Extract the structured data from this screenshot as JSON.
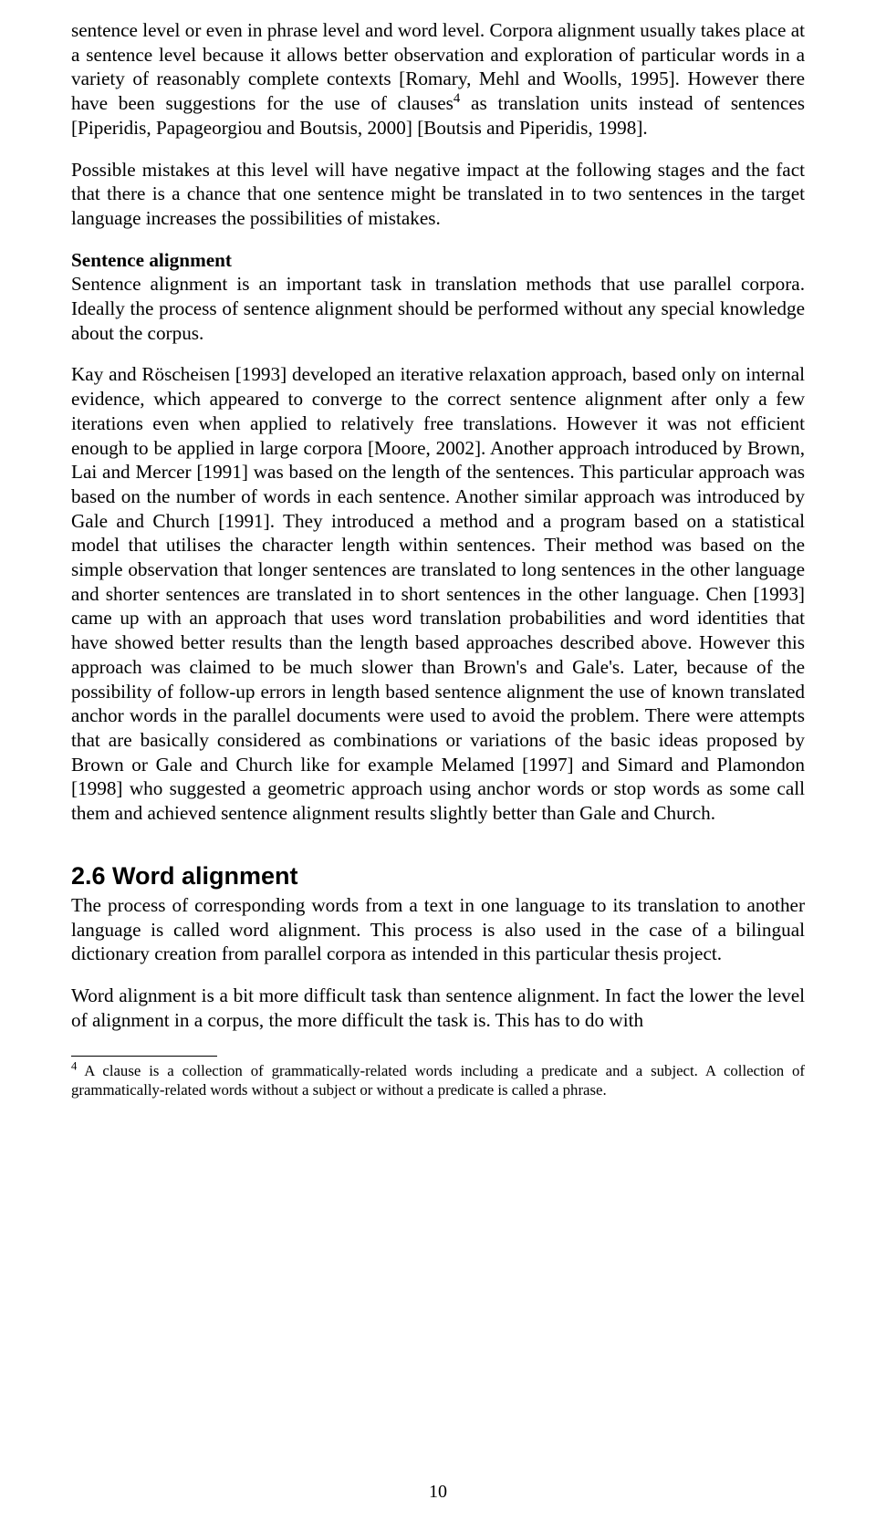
{
  "para1": "sentence level or even in phrase level and word level. Corpora alignment usually takes place at a sentence level because it allows better observation and exploration of particular words in a variety of reasonably complete contexts [Romary, Mehl and Woolls, 1995]. However there have been suggestions for the use of clauses",
  "para1_footref": "4",
  "para1b": " as translation units instead of sentences [Piperidis, Papageorgiou and Boutsis, 2000] [Boutsis and Piperidis, 1998].",
  "para2": "Possible mistakes at this level will have negative impact at the following stages and the fact that there is a chance that one sentence might be translated in to two sentences in the target language increases the possibilities of mistakes.",
  "sub1_title": "Sentence alignment",
  "para3": "Sentence alignment is an important task in translation methods that use parallel corpora. Ideally the process of sentence alignment should be performed without any special knowledge about the corpus.",
  "para4": "Kay and Röscheisen [1993] developed an iterative relaxation approach, based only on internal evidence, which appeared to converge to the correct sentence alignment after only a few iterations even when applied to relatively free translations. However it was not efficient enough to be applied in large corpora [Moore, 2002]. Another approach introduced by Brown, Lai and Mercer [1991] was based on the length of the sentences. This particular approach was based on the number of words in each sentence. Another similar approach was introduced by Gale and Church [1991]. They introduced a method and a program based on a statistical model that utilises the character length within sentences. Their method was based on the simple observation that longer sentences are translated to long sentences in the other language and shorter sentences are translated in to short sentences in the other language. Chen [1993] came up with an approach that uses word translation probabilities and word identities that have showed better results than the length based approaches described above. However this approach was claimed to be much slower than Brown's and Gale's. Later, because of the possibility of follow-up errors in length based sentence alignment the use of known translated anchor words in the parallel documents were used to avoid the problem. There were attempts that are basically considered as combinations or variations of the basic ideas proposed by Brown or Gale and Church like for example Melamed [1997] and Simard and Plamondon [1998] who suggested a geometric approach using anchor words or stop words as some call them and achieved sentence alignment results slightly better than Gale and Church.",
  "section_heading": "2.6 Word alignment",
  "para5": "The process of corresponding words from a text in one language to its translation to another language is called word alignment. This process is also used in the case of a bilingual dictionary creation from parallel corpora as intended in this particular thesis project.",
  "para6": "Word alignment is a bit more difficult task than sentence alignment. In fact the lower the level of alignment in a corpus, the more difficult the task is. This has to do with",
  "footnote_ref": "4",
  "footnote_text": " A clause is a collection of grammatically-related words including a predicate and a subject. A collection of grammatically-related words without a subject or without a predicate is called a phrase.",
  "page_number": "10"
}
